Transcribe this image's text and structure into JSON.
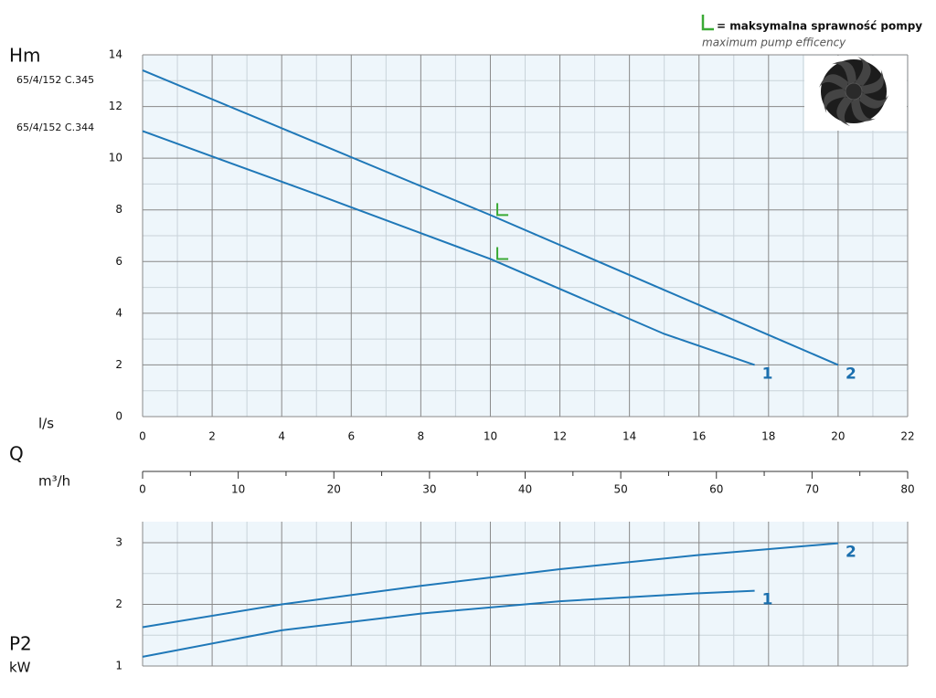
{
  "legend_note": {
    "text": "= maksymalna sprawność pompy",
    "subtitle": "maximum pump efficency",
    "color": "#3aaa35"
  },
  "chart_data": [
    {
      "type": "line",
      "y_label": "Hm",
      "x_label": "l/s",
      "models": [
        "65/4/152 C.345",
        "65/4/152 C.344"
      ],
      "xlim": [
        0,
        22
      ],
      "xticks": [
        0,
        2,
        4,
        6,
        8,
        10,
        12,
        14,
        16,
        18,
        20,
        22
      ],
      "ylim": [
        0,
        14
      ],
      "yticks": [
        0,
        2,
        4,
        6,
        8,
        10,
        12,
        14
      ],
      "grid": true,
      "series": [
        {
          "name": "1",
          "color": "#1f78b8",
          "x": [
            0,
            5,
            10,
            15,
            17.6
          ],
          "values": [
            11.05,
            8.6,
            6.1,
            3.2,
            2.0
          ]
        },
        {
          "name": "2",
          "color": "#1f78b8",
          "x": [
            0,
            5,
            10,
            15,
            20
          ],
          "values": [
            13.4,
            10.6,
            7.8,
            4.9,
            2.0
          ]
        }
      ],
      "efficiency_markers": {
        "color": "#3aaa35",
        "x": [
          10.2,
          10.2
        ],
        "y": [
          7.8,
          6.1
        ]
      }
    },
    {
      "type": "axis",
      "label": "Q",
      "x_label": "m³/h",
      "xlim": [
        0,
        80
      ],
      "xticks": [
        0,
        10,
        20,
        30,
        40,
        50,
        60,
        70,
        80
      ]
    },
    {
      "type": "line",
      "y_label": "P2",
      "y_unit": "kW",
      "xlim": [
        0,
        22
      ],
      "xticks": [
        0,
        2,
        4,
        6,
        8,
        10,
        12,
        14,
        16,
        18,
        20,
        22
      ],
      "ylim": [
        1,
        3.34
      ],
      "yticks": [
        1,
        2,
        3
      ],
      "grid": true,
      "series": [
        {
          "name": "1",
          "color": "#1f78b8",
          "x": [
            0,
            4,
            8,
            12,
            16,
            17.6
          ],
          "values": [
            1.15,
            1.58,
            1.85,
            2.05,
            2.18,
            2.22
          ]
        },
        {
          "name": "2",
          "color": "#1f78b8",
          "x": [
            0,
            4,
            8,
            12,
            16,
            20
          ],
          "values": [
            1.63,
            2.0,
            2.3,
            2.57,
            2.8,
            2.99
          ]
        }
      ]
    }
  ]
}
